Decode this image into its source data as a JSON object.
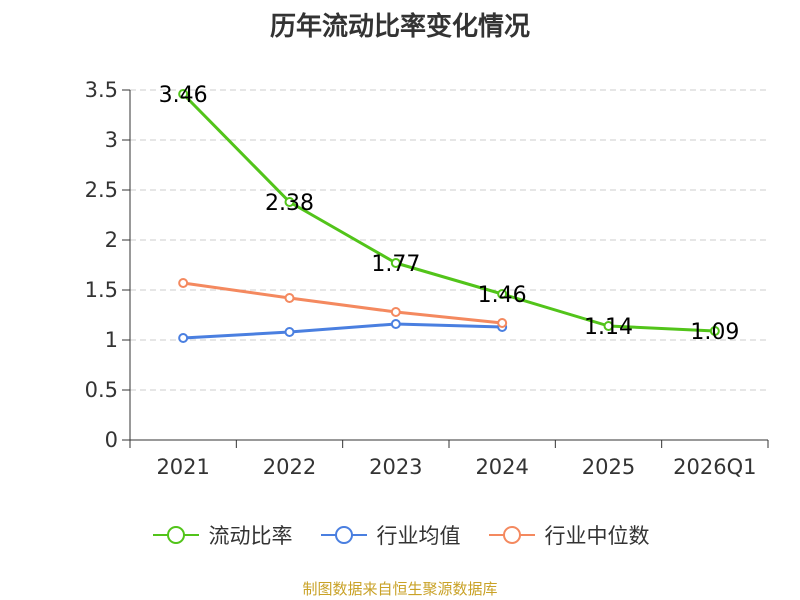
{
  "chart_data": {
    "type": "line",
    "title": "历年流动比率变化情况",
    "categories": [
      "2021",
      "2022",
      "2023",
      "2024",
      "2025",
      "2026Q1"
    ],
    "ylim": [
      0,
      3.5
    ],
    "yticks": [
      "0",
      "0.5",
      "1",
      "1.5",
      "2",
      "2.5",
      "3",
      "3.5"
    ],
    "grid": true,
    "legend_position": "bottom",
    "series": [
      {
        "name": "流动比率",
        "color": "#52c41a",
        "values": [
          3.46,
          2.38,
          1.77,
          1.46,
          1.14,
          1.09
        ],
        "labels": [
          "3.46",
          "2.38",
          "1.77",
          "1.46",
          "1.14",
          "1.09"
        ]
      },
      {
        "name": "行业均值",
        "color": "#4a7fe0",
        "values": [
          1.02,
          1.08,
          1.16,
          1.13,
          null,
          null
        ]
      },
      {
        "name": "行业中位数",
        "color": "#f4895f",
        "values": [
          1.57,
          1.42,
          1.28,
          1.17,
          null,
          null
        ]
      }
    ]
  },
  "source_note": "制图数据来自恒生聚源数据库"
}
